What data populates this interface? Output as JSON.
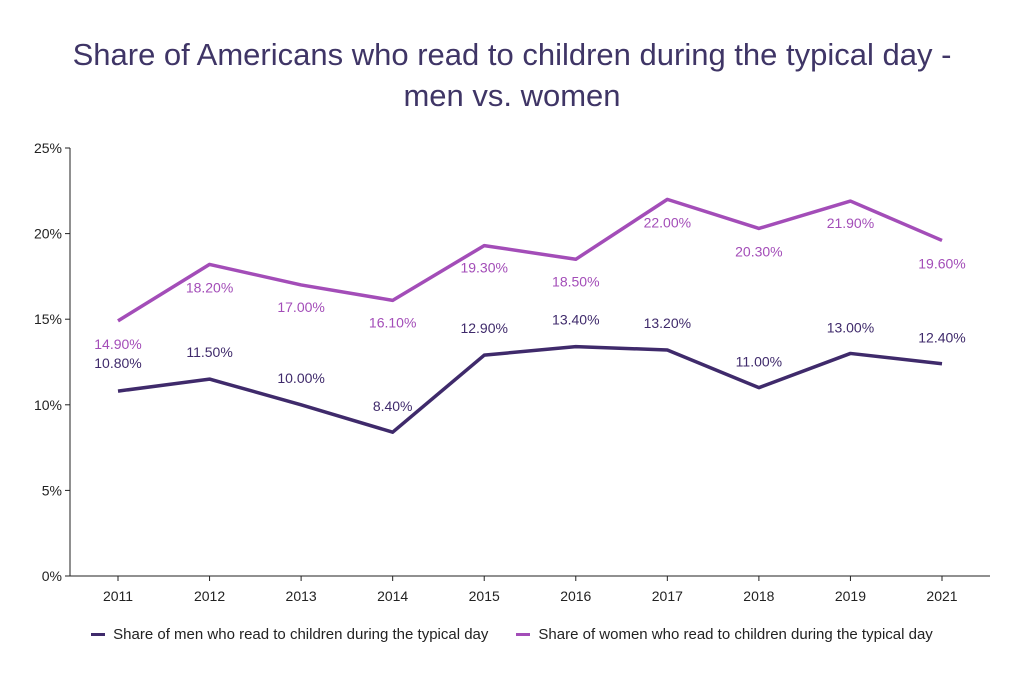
{
  "chart_data": {
    "type": "line",
    "title_line1": "Share of Americans who read to children during the typical day -",
    "title_line2": "men vs. women",
    "categories": [
      "2011",
      "2012",
      "2013",
      "2014",
      "2015",
      "2016",
      "2017",
      "2018",
      "2019",
      "2021"
    ],
    "y_ticks": [
      "0%",
      "5%",
      "10%",
      "15%",
      "20%",
      "25%"
    ],
    "ylim": [
      0,
      25
    ],
    "grid": false,
    "legend_position": "bottom",
    "series": [
      {
        "name": "Share of men who read to children during the typical day",
        "color": "#3f2a6b",
        "values": [
          10.8,
          11.5,
          10.0,
          8.4,
          12.9,
          13.4,
          13.2,
          11.0,
          13.0,
          12.4
        ],
        "labels": [
          "10.80%",
          "11.50%",
          "10.00%",
          "8.40%",
          "12.90%",
          "13.40%",
          "13.20%",
          "11.00%",
          "13.00%",
          "12.40%"
        ]
      },
      {
        "name": "Share of women who read to children during the typical day",
        "color": "#a34db8",
        "values": [
          14.9,
          18.2,
          17.0,
          16.1,
          19.3,
          18.5,
          22.0,
          20.3,
          21.9,
          19.6
        ],
        "labels": [
          "14.90%",
          "18.20%",
          "17.00%",
          "16.10%",
          "19.30%",
          "18.50%",
          "22.00%",
          "20.30%",
          "21.90%",
          "19.60%"
        ]
      }
    ]
  }
}
